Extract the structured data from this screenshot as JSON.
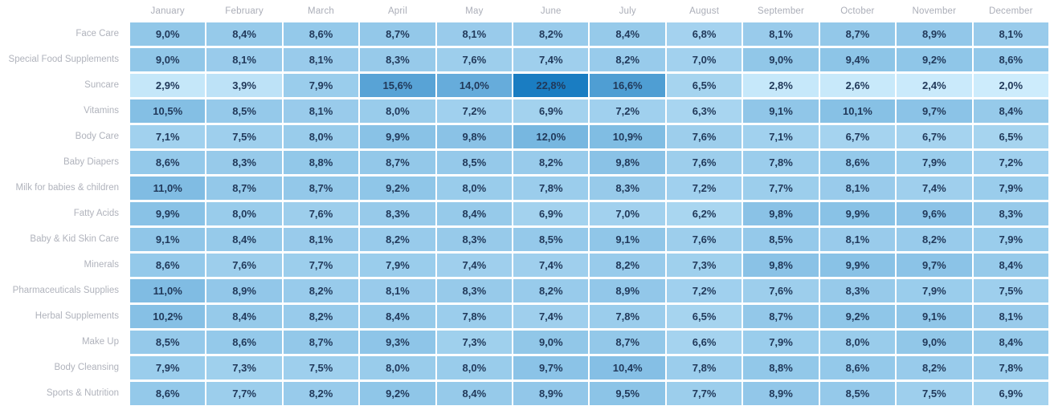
{
  "chart_data": {
    "type": "heatmap",
    "title": "",
    "xlabel": "",
    "ylabel": "",
    "legend": "none",
    "grid": "off",
    "value_format": "percent, 1 decimal, comma separator",
    "columns": [
      "January",
      "February",
      "March",
      "April",
      "May",
      "June",
      "July",
      "August",
      "September",
      "October",
      "November",
      "December"
    ],
    "rows": [
      {
        "label": "Face Care",
        "values": [
          9.0,
          8.4,
          8.6,
          8.7,
          8.1,
          8.2,
          8.4,
          6.8,
          8.1,
          8.7,
          8.9,
          8.1
        ]
      },
      {
        "label": "Special Food Supplements",
        "values": [
          9.0,
          8.1,
          8.1,
          8.3,
          7.6,
          7.4,
          8.2,
          7.0,
          9.0,
          9.4,
          9.2,
          8.6
        ]
      },
      {
        "label": "Suncare",
        "values": [
          2.9,
          3.9,
          7.9,
          15.6,
          14.0,
          22.8,
          16.6,
          6.5,
          2.8,
          2.6,
          2.4,
          2.0
        ]
      },
      {
        "label": "Vitamins",
        "values": [
          10.5,
          8.5,
          8.1,
          8.0,
          7.2,
          6.9,
          7.2,
          6.3,
          9.1,
          10.1,
          9.7,
          8.4
        ]
      },
      {
        "label": "Body Care",
        "values": [
          7.1,
          7.5,
          8.0,
          9.9,
          9.8,
          12.0,
          10.9,
          7.6,
          7.1,
          6.7,
          6.7,
          6.5
        ]
      },
      {
        "label": "Baby Diapers",
        "values": [
          8.6,
          8.3,
          8.8,
          8.7,
          8.5,
          8.2,
          9.8,
          7.6,
          7.8,
          8.6,
          7.9,
          7.2
        ]
      },
      {
        "label": "Milk for babies & children",
        "values": [
          11.0,
          8.7,
          8.7,
          9.2,
          8.0,
          7.8,
          8.3,
          7.2,
          7.7,
          8.1,
          7.4,
          7.9
        ]
      },
      {
        "label": "Fatty Acids",
        "values": [
          9.9,
          8.0,
          7.6,
          8.3,
          8.4,
          6.9,
          7.0,
          6.2,
          9.8,
          9.9,
          9.6,
          8.3
        ]
      },
      {
        "label": "Baby & Kid Skin Care",
        "values": [
          9.1,
          8.4,
          8.1,
          8.2,
          8.3,
          8.5,
          9.1,
          7.6,
          8.5,
          8.1,
          8.2,
          7.9
        ]
      },
      {
        "label": "Minerals",
        "values": [
          8.6,
          7.6,
          7.7,
          7.9,
          7.4,
          7.4,
          8.2,
          7.3,
          9.8,
          9.9,
          9.7,
          8.4
        ]
      },
      {
        "label": "Pharmaceuticals Supplies",
        "values": [
          11.0,
          8.9,
          8.2,
          8.1,
          8.3,
          8.2,
          8.9,
          7.2,
          7.6,
          8.3,
          7.9,
          7.5
        ]
      },
      {
        "label": "Herbal Supplements",
        "values": [
          10.2,
          8.4,
          8.2,
          8.4,
          7.8,
          7.4,
          7.8,
          6.5,
          8.7,
          9.2,
          9.1,
          8.1
        ]
      },
      {
        "label": "Make Up",
        "values": [
          8.5,
          8.6,
          8.7,
          9.3,
          7.3,
          9.0,
          8.7,
          6.6,
          7.9,
          8.0,
          9.0,
          8.4
        ]
      },
      {
        "label": "Body Cleansing",
        "values": [
          7.9,
          7.3,
          7.5,
          8.0,
          8.0,
          9.7,
          10.4,
          7.8,
          8.8,
          8.6,
          8.2,
          7.8
        ]
      },
      {
        "label": "Sports & Nutrition",
        "values": [
          8.6,
          7.7,
          8.2,
          9.2,
          8.4,
          8.9,
          9.5,
          7.7,
          8.9,
          8.5,
          7.5,
          6.9
        ]
      }
    ],
    "color_scale": {
      "min_value": 2.0,
      "max_value": 22.8,
      "min_color": "#cdecfc",
      "max_color": "#1a7dc2"
    },
    "cell_text_color": "#21395a",
    "header_text_color": "#abaeb8",
    "row_label_color": "#b0b3bc",
    "background_color": "#ffffff"
  }
}
